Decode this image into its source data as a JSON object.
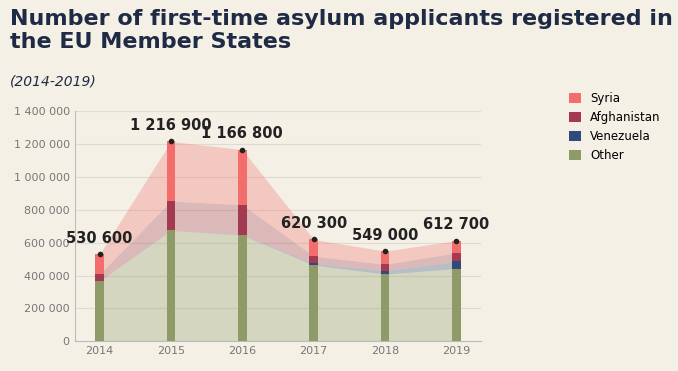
{
  "chart_data": {
    "type": "bar",
    "stacked": true,
    "title": "Number of first-time asylum applicants registered in the EU Member States",
    "subtitle": "(2014-2019)",
    "categories": [
      "2014",
      "2015",
      "2016",
      "2017",
      "2018",
      "2019"
    ],
    "series": [
      {
        "name": "Other",
        "color": "#8e9a68",
        "values": [
          367000,
          674900,
          646300,
          464300,
          409000,
          442700
        ]
      },
      {
        "name": "Venezuela",
        "color": "#2f4b7c",
        "values": [
          600,
          1000,
          3500,
          10000,
          22000,
          44000
        ]
      },
      {
        "name": "Afghanistan",
        "color": "#a33a52",
        "values": [
          41000,
          178000,
          182000,
          44000,
          38000,
          52000
        ]
      },
      {
        "name": "Syria",
        "color": "#f26d6b",
        "values": [
          122000,
          363000,
          335000,
          102000,
          80000,
          74000
        ]
      }
    ],
    "annotations": [
      {
        "x": "2014",
        "y": 530600,
        "text": "530 600"
      },
      {
        "x": "2015",
        "y": 1216900,
        "text": "1 216 900"
      },
      {
        "x": "2016",
        "y": 1166800,
        "text": "1 166 800"
      },
      {
        "x": "2017",
        "y": 620300,
        "text": "620 300"
      },
      {
        "x": "2018",
        "y": 549000,
        "text": "549 000"
      },
      {
        "x": "2019",
        "y": 612700,
        "text": "612 700"
      }
    ],
    "ylim": [
      0,
      1400000
    ],
    "yticks": [
      0,
      {
        "value": 200000,
        "label": "200 000"
      },
      {
        "value": 400000,
        "label": "400 000"
      },
      {
        "value": 600000,
        "label": "600 000"
      },
      {
        "value": 800000,
        "label": "800 000"
      },
      {
        "value": 1000000,
        "label": "1 000 000"
      },
      {
        "value": 1200000,
        "label": "1 200 000"
      },
      {
        "value": 1400000,
        "label": "1 400 000"
      }
    ],
    "grid": true,
    "legend": "upper right"
  }
}
